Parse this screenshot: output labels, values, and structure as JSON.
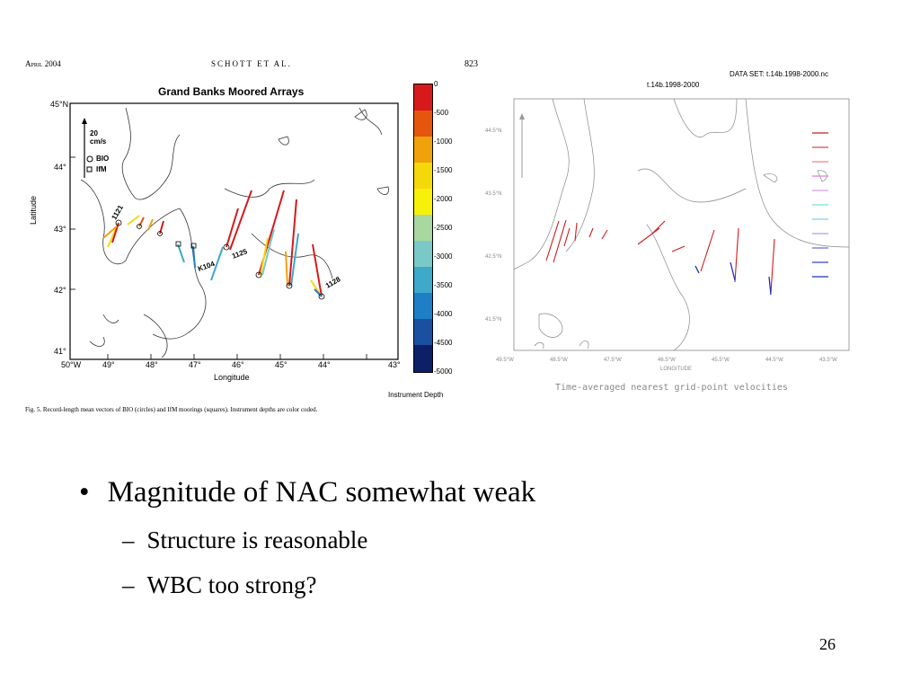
{
  "left_figure": {
    "header_date": "April 2004",
    "header_authors": "SCHOTT ET AL.",
    "header_page": "823",
    "title": "Grand Banks Moored Arrays",
    "scale_text": "20",
    "scale_units": "cm/s",
    "legend_bio": "BIO",
    "legend_ifm": "IfM",
    "ylabel": "Latitude",
    "xlabel": "Longitude",
    "lat_labels": [
      "45°N",
      "44°",
      "43°",
      "42°",
      "41°"
    ],
    "lon_labels": [
      "50°W",
      "49°",
      "48°",
      "47°",
      "46°",
      "45°",
      "44°",
      "43°"
    ],
    "mooring_labels": [
      "1121",
      "K104",
      "1125",
      "1128"
    ],
    "colorbar_ticks": [
      "0",
      "-500",
      "-1000",
      "-1500",
      "-2000",
      "-2500",
      "-3000",
      "-3500",
      "-4000",
      "-4500",
      "-5000"
    ],
    "colorbar_colors": [
      "#d7191c",
      "#e6550d",
      "#f0a10b",
      "#f5d80a",
      "#f7f008",
      "#a8d8a0",
      "#7bc8c8",
      "#3fa9c9",
      "#1e7fc6",
      "#1b4fa0",
      "#0d1f66"
    ],
    "colorbar_label": "Instrument Depth",
    "caption": "Fig. 5. Record-length mean vectors of BIO (circles) and IfM moorings (squares). Instrument depths are color coded."
  },
  "right_figure": {
    "dataset_label": "DATA SET: t.14b.1998-2000.nc",
    "subtitle": "t.14b.1998-2000",
    "lat_labels": [
      "44.5°N",
      "43.5°N",
      "42.5°N",
      "41.5°N"
    ],
    "lon_labels": [
      "49.5°W",
      "48.5°W",
      "47.5°W",
      "46.5°W",
      "45.5°W",
      "44.5°W",
      "43.5°W"
    ],
    "xlabel": "LONGITUDE",
    "caption": "Time-averaged nearest grid-point velocities"
  },
  "bullets": {
    "main": "Magnitude of NAC somewhat weak",
    "subs": [
      "Structure is reasonable",
      "WBC too strong?"
    ]
  },
  "slide_number": "26"
}
